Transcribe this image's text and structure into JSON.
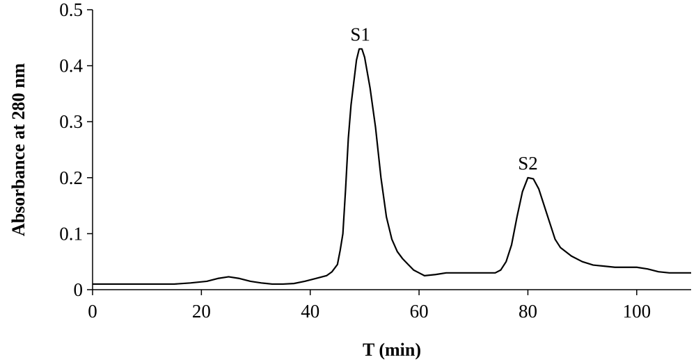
{
  "chart_data": {
    "type": "line",
    "title": "",
    "xlabel": "T (min)",
    "ylabel": "Absorbance at 280 nm",
    "xlim": [
      0,
      110
    ],
    "ylim": [
      0,
      0.5
    ],
    "x_ticks": [
      "0",
      "20",
      "40",
      "60",
      "80",
      "100"
    ],
    "x_tick_values": [
      0,
      20,
      40,
      60,
      80,
      100
    ],
    "y_ticks": [
      "0",
      "0.1",
      "0.2",
      "0.3",
      "0.4",
      "0.5"
    ],
    "y_tick_values": [
      0,
      0.1,
      0.2,
      0.3,
      0.4,
      0.5
    ],
    "grid": false,
    "legend": "none",
    "line_color": "#000000",
    "annotations": [
      {
        "text": "S1",
        "x": 49.2,
        "y": 0.43
      },
      {
        "text": "S2",
        "x": 80.0,
        "y": 0.2
      }
    ],
    "series": [
      {
        "x": [
          0,
          5,
          10,
          15,
          18,
          21,
          23,
          25,
          27,
          29,
          31,
          33,
          35,
          37,
          39,
          41,
          43,
          44,
          45,
          45.5,
          46,
          46.5,
          47,
          47.5,
          48,
          48.5,
          49,
          49.5,
          50,
          51,
          52,
          53,
          54,
          55,
          56,
          57,
          58,
          59,
          60,
          61,
          63,
          65,
          67,
          69,
          71,
          73,
          74,
          75,
          76,
          77,
          78,
          79,
          80,
          81,
          82,
          83,
          84,
          85,
          86,
          88,
          90,
          92,
          94,
          96,
          98,
          100,
          102,
          104,
          106,
          108,
          110
        ],
        "y": [
          0.01,
          0.01,
          0.01,
          0.01,
          0.012,
          0.015,
          0.02,
          0.023,
          0.02,
          0.015,
          0.012,
          0.01,
          0.01,
          0.011,
          0.015,
          0.02,
          0.025,
          0.032,
          0.045,
          0.07,
          0.1,
          0.18,
          0.27,
          0.33,
          0.37,
          0.41,
          0.43,
          0.43,
          0.415,
          0.36,
          0.29,
          0.2,
          0.13,
          0.09,
          0.068,
          0.055,
          0.045,
          0.035,
          0.03,
          0.025,
          0.027,
          0.03,
          0.03,
          0.03,
          0.03,
          0.03,
          0.03,
          0.035,
          0.05,
          0.08,
          0.13,
          0.175,
          0.2,
          0.198,
          0.18,
          0.15,
          0.12,
          0.09,
          0.075,
          0.06,
          0.05,
          0.044,
          0.042,
          0.04,
          0.04,
          0.04,
          0.037,
          0.032,
          0.03,
          0.03,
          0.03
        ]
      }
    ]
  }
}
